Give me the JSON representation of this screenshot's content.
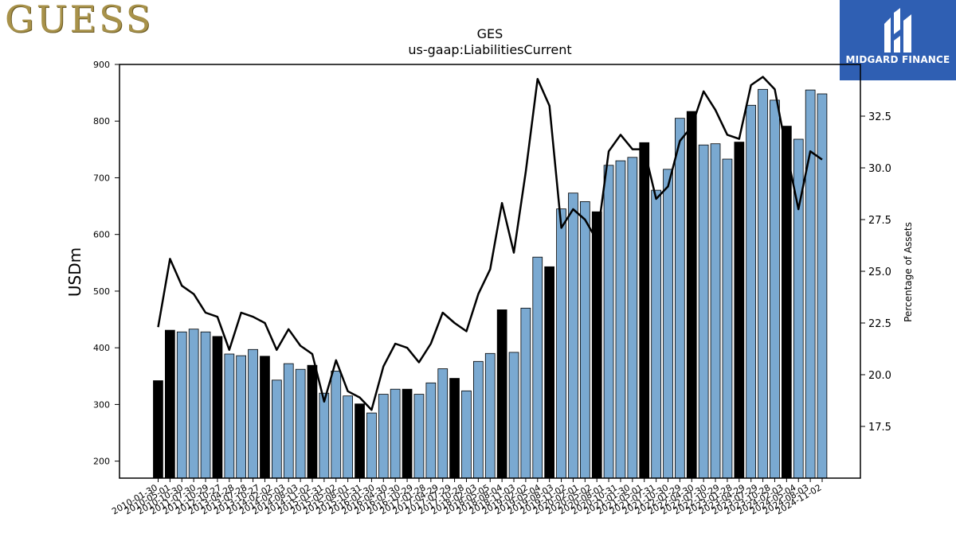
{
  "brand": {
    "left_logo_text": "GUESS",
    "right_logo_text": "MIDGARD FINANCE"
  },
  "chart_data": {
    "type": "bar",
    "title": "GES",
    "subtitle": "us-gaap:LiabilitiesCurrent",
    "ylabel": "USDm",
    "y2label": "Percentage of Assets",
    "ylim": [
      170,
      900
    ],
    "y2lim": [
      15.0,
      35.0
    ],
    "yticks": [
      200,
      300,
      400,
      500,
      600,
      700,
      800,
      900
    ],
    "y2ticks": [
      "17.5",
      "20.0",
      "22.5",
      "25.0",
      "27.5",
      "30.0",
      "32.5"
    ],
    "xticklabels_visible": [
      "2010-01-30",
      "2010-05-01",
      "2010-10-30",
      "2011-07-30",
      "2011-10-29",
      "2012-10-27",
      "2013-04-28",
      "2013-07-28",
      "2013-10-27",
      "2014-02-02",
      "2014-05-03",
      "2014-08-03",
      "2014-11-02",
      "2015-01-31",
      "2015-05-02",
      "2015-08-01",
      "2015-10-31",
      "2016-01-30",
      "2016-04-30",
      "2016-07-30",
      "2016-10-29",
      "2017-01-28",
      "2017-04-29",
      "2017-07-29",
      "2017-10-28",
      "2018-02-03",
      "2018-05-05",
      "2018-08-04",
      "2018-11-03",
      "2019-02-02",
      "2019-05-04",
      "2019-08-03",
      "2019-11-02",
      "2020-02-01",
      "2020-05-02",
      "2020-08-01",
      "2020-10-31",
      "2021-01-30",
      "2021-05-01",
      "2021-07-31",
      "2021-10-30",
      "2022-01-29",
      "2022-04-30",
      "2022-07-30",
      "2022-10-29",
      "2023-01-28",
      "2023-04-29",
      "2023-07-29",
      "2023-10-28",
      "2024-02-03",
      "2024-05-04",
      "2024-08-03",
      "2024-11-02"
    ],
    "series": [
      {
        "kind": "bar",
        "fiscal_year_end_color": "#000000",
        "quarter_color": "#7aa9d1",
        "values": [
          342,
          431,
          428,
          433,
          428,
          420,
          389,
          386,
          397,
          385,
          343,
          372,
          362,
          369,
          320,
          359,
          315,
          301,
          285,
          318,
          327,
          327,
          318,
          338,
          363,
          346,
          324,
          376,
          390,
          467,
          392,
          470,
          560,
          543,
          645,
          673,
          658,
          640,
          722,
          730,
          736,
          762,
          678,
          715,
          805,
          817,
          758,
          760,
          733,
          763,
          828,
          856,
          837,
          791,
          768,
          855,
          848
        ],
        "fiscal_year_end": [
          1,
          1,
          0,
          0,
          0,
          1,
          0,
          0,
          0,
          1,
          0,
          0,
          0,
          1,
          0,
          0,
          0,
          1,
          0,
          0,
          0,
          1,
          0,
          0,
          0,
          1,
          0,
          0,
          0,
          1,
          0,
          0,
          0,
          1,
          0,
          0,
          0,
          1,
          0,
          0,
          0,
          1,
          0,
          0,
          0,
          1,
          0,
          0,
          0,
          1,
          0,
          0,
          0,
          1,
          0,
          0,
          0
        ]
      },
      {
        "kind": "line",
        "axis": "right",
        "color": "#000000",
        "values": [
          22.3,
          25.6,
          24.3,
          23.9,
          23.0,
          22.8,
          21.2,
          23.0,
          22.8,
          22.5,
          21.2,
          22.2,
          21.4,
          21.0,
          18.7,
          20.7,
          19.2,
          18.9,
          18.3,
          20.4,
          21.5,
          21.3,
          20.6,
          21.5,
          23.0,
          22.5,
          22.1,
          23.9,
          25.1,
          28.3,
          25.9,
          29.8,
          34.3,
          33.0,
          27.1,
          28.0,
          27.5,
          26.5,
          30.8,
          31.6,
          30.9,
          30.9,
          28.5,
          29.1,
          31.3,
          32.0,
          33.7,
          32.8,
          31.6,
          31.4,
          34.0,
          34.4,
          33.8,
          30.8,
          28.0,
          30.8,
          30.4
        ]
      }
    ]
  }
}
